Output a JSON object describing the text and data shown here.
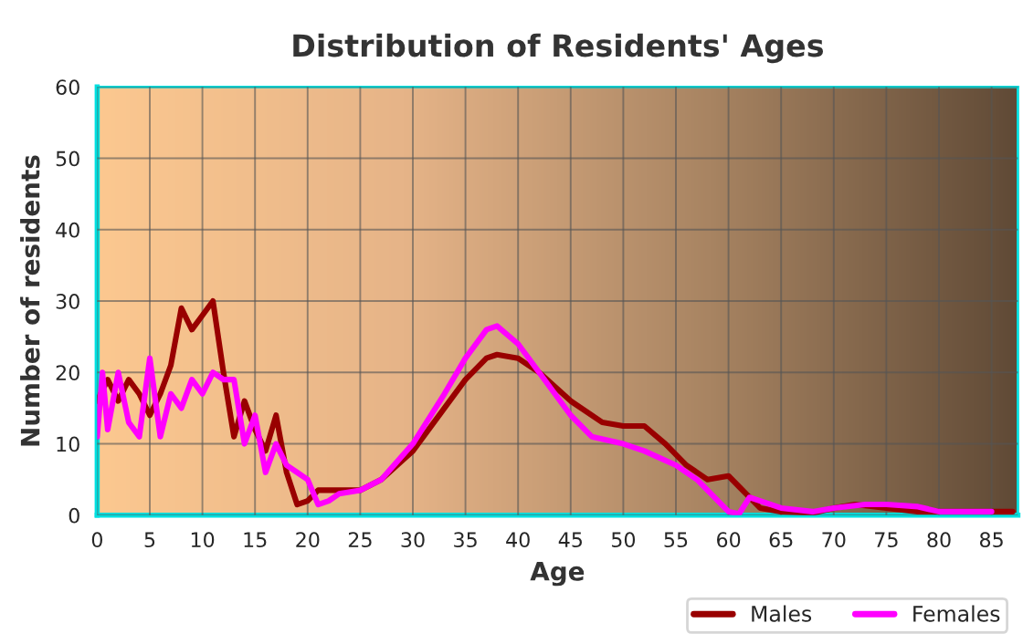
{
  "chart_data": {
    "type": "line",
    "title": "Distribution of Residents' Ages",
    "xlabel": "Age",
    "ylabel": "Number of residents",
    "xlim": [
      0,
      87.5
    ],
    "xticks": [
      0,
      5,
      10,
      15,
      20,
      25,
      30,
      35,
      40,
      45,
      50,
      55,
      60,
      65,
      70,
      75,
      80,
      85
    ],
    "ylim": [
      0,
      60
    ],
    "yticks": [
      0,
      10,
      20,
      30,
      40,
      50,
      60
    ],
    "grid": true,
    "legend": "bottom right",
    "series": [
      {
        "name": "Males",
        "color": "#990000",
        "x": [
          0,
          1,
          2,
          3,
          4,
          5,
          6,
          7,
          8,
          9,
          10,
          11,
          12,
          13,
          14,
          15,
          16,
          17,
          18,
          19,
          20,
          21,
          22,
          25,
          27,
          30,
          33,
          35,
          37,
          38,
          40,
          42,
          45,
          48,
          50,
          52,
          54,
          56,
          58,
          60,
          61,
          63,
          65,
          68,
          70,
          72,
          75,
          78,
          80,
          85,
          87
        ],
        "values": [
          16,
          19,
          16,
          19,
          17,
          14,
          17,
          21,
          29,
          26,
          28,
          30,
          20,
          11,
          16,
          12,
          9,
          14,
          6,
          1.5,
          2,
          3.5,
          3.5,
          3.5,
          5,
          9,
          15,
          19,
          22,
          22.5,
          22,
          20,
          16,
          13,
          12.5,
          12.5,
          10,
          7,
          5,
          5.5,
          4,
          1,
          0.5,
          0.3,
          1,
          1.5,
          1,
          0.5,
          0.5,
          0.5,
          0.5
        ]
      },
      {
        "name": "Females",
        "color": "#ff00ff",
        "x": [
          0,
          0.5,
          1,
          2,
          3,
          4,
          5,
          6,
          7,
          8,
          9,
          10,
          11,
          12,
          13,
          14,
          15,
          16,
          17,
          18,
          19,
          20,
          21,
          22,
          23,
          25,
          27,
          30,
          33,
          35,
          37,
          38,
          40,
          42,
          45,
          47,
          50,
          52,
          55,
          57,
          59,
          60,
          61,
          62,
          63,
          65,
          68,
          70,
          73,
          75,
          78,
          80,
          85
        ],
        "values": [
          11,
          20,
          12,
          20,
          13,
          11,
          22,
          11,
          17,
          15,
          19,
          17,
          20,
          19,
          19,
          10,
          14,
          6,
          10,
          7,
          6,
          5,
          1.5,
          2,
          3,
          3.5,
          5,
          10,
          17,
          22,
          26,
          26.5,
          24,
          20,
          14,
          11,
          10,
          9,
          7,
          5,
          2,
          0.5,
          0.2,
          2.5,
          2,
          1,
          0.5,
          1,
          1.5,
          1.5,
          1.2,
          0.5,
          0.5
        ]
      }
    ]
  }
}
